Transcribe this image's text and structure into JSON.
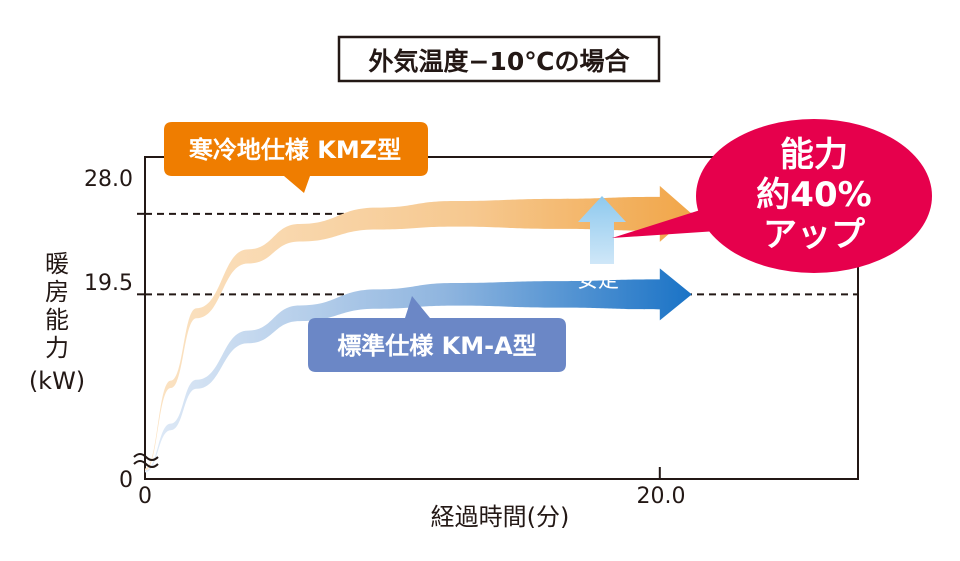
{
  "chart_data": {
    "type": "line",
    "title": "外気温度−10℃の場合",
    "xlabel": "経過時間(分)",
    "ylabel_lines": [
      "暖",
      "房",
      "能",
      "力",
      "(kW)"
    ],
    "x_ticks": [
      "0",
      "20.0"
    ],
    "y_ticks": [
      "0",
      "19.5",
      "28.0"
    ],
    "y_ref_lines": [
      19.5,
      28.0
    ],
    "x_ref_lines": [
      20.0
    ],
    "xlim": [
      0,
      27.7
    ],
    "ylim": [
      0,
      34
    ],
    "series": [
      {
        "name": "寒冷地仕様 KMZ型",
        "color": "#f0a64a",
        "x": [
          0,
          1,
          2,
          4,
          6,
          9,
          12,
          16,
          20
        ],
        "y": [
          1,
          10,
          17.5,
          23.5,
          26,
          27.5,
          28,
          28,
          28
        ],
        "stable_label": "安定"
      },
      {
        "name": "標準仕様 KM-A型",
        "color": "#1f78c8",
        "x": [
          0,
          1,
          2,
          4,
          6,
          9,
          12,
          16,
          20
        ],
        "y": [
          0.8,
          5.5,
          10,
          15,
          17.5,
          19,
          19.5,
          19.5,
          19.5
        ],
        "stable_label": "安定"
      }
    ],
    "callout": {
      "lines": [
        "能力",
        "約40%",
        "アップ"
      ],
      "fill": "#e6004c",
      "text_color": "#ffffff"
    },
    "label_colors": {
      "kmz": "#ef7d00",
      "kma": "#6b87c6"
    }
  }
}
